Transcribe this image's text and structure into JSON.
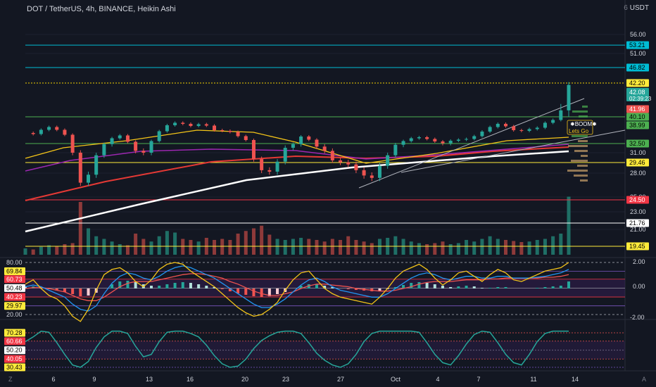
{
  "header": {
    "symbol_title": "DOT / TetherUS, 4h, BINANCE, Heikin Ashi",
    "scale_index": "6",
    "currency": "USDT"
  },
  "colors": {
    "background": "#131722",
    "grid": "#1e2230",
    "up": "#26a69a",
    "down": "#ef5350",
    "text": "#d1d4dc"
  },
  "bottom_left_glyph": "Z",
  "bottom_right_glyph": "A",
  "chart_data": [
    {
      "type": "line",
      "panel": "price",
      "y_axis_ticks": [
        56.0,
        51.0,
        31.0,
        28.0,
        25.0,
        23.0,
        21.0
      ],
      "x_ticks": [
        "6",
        "9",
        "13",
        "16",
        "20",
        "23",
        "27",
        "Oct",
        "4",
        "7",
        "11",
        "14"
      ],
      "horizontal_levels": [
        {
          "value": 53.21,
          "label": "53.21",
          "color": "#00bcd4",
          "label_bg": "#00bcd4",
          "label_fg": "#000000"
        },
        {
          "value": 46.82,
          "label": "46.82",
          "color": "#00bcd4",
          "label_bg": "#00bcd4",
          "label_fg": "#000000"
        },
        {
          "value": 42.2,
          "label": "42.20",
          "color": "#f5d300",
          "label_bg": "#ffeb3b",
          "label_fg": "#000000",
          "dotted": true
        },
        {
          "value": 40.1,
          "label": "40.10",
          "color": "#4caf50",
          "label_bg": "#4caf50",
          "label_fg": "#000000"
        },
        {
          "value": 32.5,
          "label": "32.50",
          "color": "#4caf50",
          "label_bg": "#4caf50",
          "label_fg": "#000000"
        },
        {
          "value": 29.46,
          "label": "29.46",
          "color": "#ffeb3b",
          "label_bg": "#ffeb3b",
          "label_fg": "#000000"
        },
        {
          "value": 24.5,
          "label": "24.50",
          "color": "#f23645",
          "label_bg": "#f23645",
          "label_fg": "#ffffff"
        },
        {
          "value": 21.76,
          "label": "21.76",
          "color": "#ffffff",
          "label_bg": "#ffffff",
          "label_fg": "#000000"
        },
        {
          "value": 19.45,
          "label": "19.45",
          "color": "#ffeb3b",
          "label_bg": "#ffeb3b",
          "label_fg": "#000000"
        }
      ],
      "price_labels": [
        {
          "label": "42.08",
          "sub": "02:39:23",
          "bg": "#26a69a",
          "fg": "#ffffff"
        },
        {
          "label": "41.96",
          "bg": "#ef5350",
          "fg": "#ffffff"
        },
        {
          "label": "38.99",
          "bg": "#4caf50",
          "fg": "#000000"
        }
      ],
      "annotation": {
        "lines": [
          "BOOM",
          "Lets Go"
        ],
        "icon": "explosion-icon"
      },
      "price_path": [
        35.5,
        35.2,
        36.4,
        37.2,
        36.4,
        35.0,
        31.0,
        26.8,
        27.8,
        30.6,
        32.4,
        34.0,
        34.8,
        33.0,
        31.3,
        31.0,
        33.2,
        36.0,
        37.7,
        38.4,
        38.1,
        37.5,
        38.0,
        37.6,
        36.3,
        36.1,
        35.8,
        34.6,
        33.5,
        30.0,
        28.4,
        28.2,
        29.6,
        31.8,
        32.4,
        34.5,
        33.6,
        32.0,
        31.3,
        29.8,
        29.5,
        29.2,
        28.4,
        27.7,
        27.4,
        29.0,
        30.6,
        32.3,
        33.2,
        34.0,
        34.3,
        33.8,
        33.1,
        32.6,
        33.3,
        33.6,
        33.8,
        34.6,
        35.9,
        37.2,
        38.1,
        37.4,
        36.3,
        36.1,
        36.6,
        37.0,
        38.4,
        39.2,
        40.5,
        42.08
      ]
    },
    {
      "type": "bar",
      "panel": "volume",
      "values": [
        0.12,
        0.1,
        0.15,
        0.18,
        0.16,
        0.2,
        0.22,
        1.0,
        0.5,
        0.35,
        0.3,
        0.25,
        0.2,
        0.18,
        0.4,
        0.3,
        0.25,
        0.35,
        0.45,
        0.42,
        0.3,
        0.28,
        0.25,
        0.32,
        0.28,
        0.3,
        0.28,
        0.4,
        0.45,
        0.5,
        0.55,
        0.38,
        0.3,
        0.28,
        0.3,
        0.32,
        0.3,
        0.28,
        0.25,
        0.3,
        0.28,
        0.35,
        0.28,
        0.25,
        0.22,
        0.3,
        0.32,
        0.35,
        0.3,
        0.25,
        0.22,
        0.2,
        0.22,
        0.25,
        0.2,
        0.22,
        0.28,
        0.25,
        0.3,
        0.35,
        0.3,
        0.28,
        0.26,
        0.24,
        0.25,
        0.28,
        0.3,
        0.35,
        0.4,
        1.1
      ]
    },
    {
      "type": "line",
      "panel": "oscillator",
      "y_axis_ticks": [
        "2.00",
        "0.00",
        "-2.00"
      ],
      "levels": [
        {
          "value": 80.0,
          "label": "80.00",
          "bg": "#131722",
          "fg": "#d1d4dc"
        },
        {
          "value": 69.84,
          "label": "69.84",
          "bg": "#ffeb3b",
          "fg": "#000000"
        },
        {
          "value": 60.73,
          "label": "60.73",
          "bg": "#f23645",
          "fg": "#ffffff"
        },
        {
          "value": 50.48,
          "label": "50.48",
          "bg": "#ffffff",
          "fg": "#000000"
        },
        {
          "value": 40.23,
          "label": "40.23",
          "bg": "#f23645",
          "fg": "#ffffff"
        },
        {
          "value": 29.97,
          "label": "29.97",
          "bg": "#ffeb3b",
          "fg": "#000000"
        },
        {
          "value": 20.0,
          "label": "20.00",
          "bg": "#131722",
          "fg": "#d1d4dc"
        }
      ],
      "series_yellow": [
        55,
        60,
        50,
        42,
        38,
        30,
        18,
        12,
        26,
        48,
        66,
        72,
        74,
        68,
        58,
        52,
        60,
        72,
        78,
        80,
        78,
        70,
        64,
        58,
        52,
        44,
        36,
        28,
        22,
        18,
        20,
        26,
        34,
        48,
        60,
        68,
        70,
        60,
        50,
        44,
        40,
        38,
        36,
        34,
        32,
        40,
        50,
        62,
        70,
        74,
        78,
        72,
        62,
        54,
        60,
        68,
        70,
        64,
        58,
        66,
        72,
        68,
        60,
        58,
        62,
        66,
        70,
        72,
        74,
        80
      ],
      "series_blue": [
        52,
        54,
        52,
        48,
        44,
        40,
        32,
        26,
        24,
        30,
        44,
        56,
        64,
        68,
        66,
        62,
        60,
        64,
        70,
        74,
        76,
        74,
        70,
        66,
        62,
        56,
        50,
        44,
        38,
        32,
        28,
        28,
        32,
        38,
        46,
        54,
        60,
        62,
        58,
        52,
        48,
        46,
        44,
        42,
        40,
        40,
        44,
        50,
        56,
        62,
        66,
        68,
        66,
        62,
        60,
        62,
        64,
        64,
        62,
        62,
        64,
        64,
        62,
        62,
        62,
        63,
        64,
        66,
        68,
        72
      ],
      "series_red": [
        50,
        51,
        51,
        50,
        48,
        46,
        42,
        38,
        36,
        36,
        40,
        46,
        52,
        56,
        58,
        58,
        58,
        60,
        62,
        64,
        66,
        67,
        67,
        66,
        64,
        62,
        58,
        55,
        51,
        47,
        44,
        42,
        42,
        44,
        46,
        50,
        53,
        55,
        55,
        54,
        53,
        52,
        50,
        49,
        48,
        47,
        47,
        48,
        50,
        52,
        55,
        57,
        58,
        58,
        58,
        59,
        60,
        60,
        60,
        61,
        61,
        62,
        62,
        62,
        62,
        62,
        63,
        63,
        64,
        66
      ],
      "histogram": [
        0.3,
        0.3,
        0.1,
        -0.1,
        -0.3,
        -0.5,
        -0.8,
        -1.1,
        -1.0,
        -0.6,
        0.0,
        0.6,
        1.0,
        1.1,
        0.9,
        0.6,
        0.4,
        0.4,
        0.6,
        0.8,
        0.9,
        0.8,
        0.6,
        0.4,
        0.2,
        -0.1,
        -0.4,
        -0.7,
        -0.9,
        -1.1,
        -1.2,
        -1.1,
        -0.8,
        -0.5,
        0.0,
        0.4,
        0.6,
        0.6,
        0.4,
        0.2,
        0.0,
        -0.1,
        -0.2,
        -0.3,
        -0.4,
        -0.3,
        -0.1,
        0.2,
        0.5,
        0.8,
        0.9,
        0.8,
        0.6,
        0.4,
        0.2,
        0.3,
        0.4,
        0.3,
        0.1,
        0.1,
        0.2,
        0.2,
        0.0,
        0.0,
        0.0,
        0.1,
        0.2,
        0.3,
        0.4,
        1.0
      ]
    },
    {
      "type": "line",
      "panel": "stochastic",
      "levels": [
        {
          "value": 70.28,
          "label": "70.28",
          "bg": "#ffeb3b",
          "fg": "#000000"
        },
        {
          "value": 60.66,
          "label": "60.66",
          "bg": "#f23645",
          "fg": "#ffffff"
        },
        {
          "value": 50.2,
          "label": "50.20",
          "bg": "#ffffff",
          "fg": "#000000"
        },
        {
          "value": 40.05,
          "label": "40.05",
          "bg": "#f23645",
          "fg": "#ffffff"
        },
        {
          "value": 30.43,
          "label": "30.43",
          "bg": "#ffeb3b",
          "fg": "#000000"
        }
      ],
      "values": [
        62,
        70,
        80,
        78,
        60,
        40,
        22,
        18,
        28,
        52,
        70,
        80,
        80,
        76,
        54,
        36,
        40,
        62,
        78,
        80,
        80,
        76,
        70,
        56,
        38,
        24,
        18,
        20,
        32,
        50,
        64,
        72,
        78,
        80,
        80,
        76,
        60,
        42,
        30,
        22,
        18,
        24,
        40,
        62,
        76,
        80,
        80,
        80,
        80,
        80,
        78,
        60,
        40,
        26,
        22,
        38,
        58,
        74,
        80,
        78,
        60,
        40,
        26,
        22,
        40,
        62,
        76,
        80,
        80,
        80
      ]
    }
  ]
}
